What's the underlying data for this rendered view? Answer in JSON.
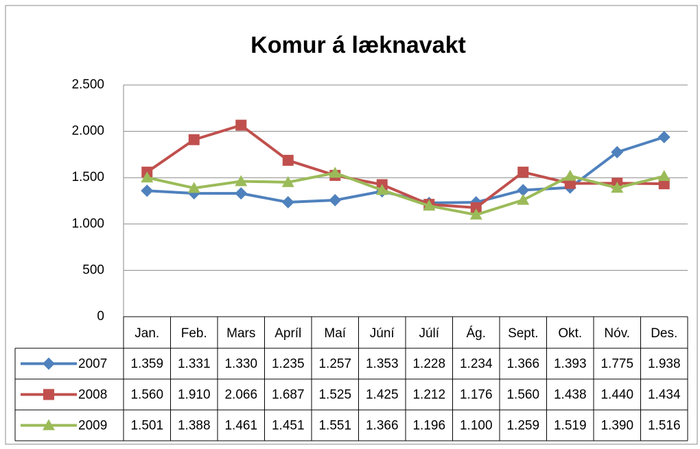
{
  "chart_data": {
    "type": "line",
    "title": "Komur á læknavakt",
    "categories": [
      "Jan.",
      "Feb.",
      "Mars",
      "Apríl",
      "Maí",
      "Júní",
      "Júlí",
      "Ág.",
      "Sept.",
      "Okt.",
      "Nóv.",
      "Des."
    ],
    "series": [
      {
        "name": "2007",
        "color": "#4f81bd",
        "marker": "diamond",
        "values": [
          1359,
          1331,
          1330,
          1235,
          1257,
          1353,
          1228,
          1234,
          1366,
          1393,
          1775,
          1938
        ],
        "value_labels": [
          "1.359",
          "1.331",
          "1.330",
          "1.235",
          "1.257",
          "1.353",
          "1.228",
          "1.234",
          "1.366",
          "1.393",
          "1.775",
          "1.938"
        ]
      },
      {
        "name": "2008",
        "color": "#c0504d",
        "marker": "square",
        "values": [
          1560,
          1910,
          2066,
          1687,
          1525,
          1425,
          1212,
          1176,
          1560,
          1438,
          1440,
          1434
        ],
        "value_labels": [
          "1.560",
          "1.910",
          "2.066",
          "1.687",
          "1.525",
          "1.425",
          "1.212",
          "1.176",
          "1.560",
          "1.438",
          "1.440",
          "1.434"
        ]
      },
      {
        "name": "2009",
        "color": "#9bbb59",
        "marker": "triangle",
        "values": [
          1501,
          1388,
          1461,
          1451,
          1551,
          1366,
          1196,
          1100,
          1259,
          1519,
          1390,
          1516
        ],
        "value_labels": [
          "1.501",
          "1.388",
          "1.461",
          "1.451",
          "1.551",
          "1.366",
          "1.196",
          "1.100",
          "1.259",
          "1.519",
          "1.390",
          "1.516"
        ]
      }
    ],
    "ylim": [
      0,
      2500
    ],
    "yticks": [
      0,
      500,
      {
        "value": 1000,
        "label": "1.000"
      },
      {
        "value": 1500,
        "label": "1.500"
      },
      {
        "value": 2000,
        "label": "2.000"
      },
      {
        "value": 2500,
        "label": "2.500"
      }
    ],
    "grid": true
  }
}
